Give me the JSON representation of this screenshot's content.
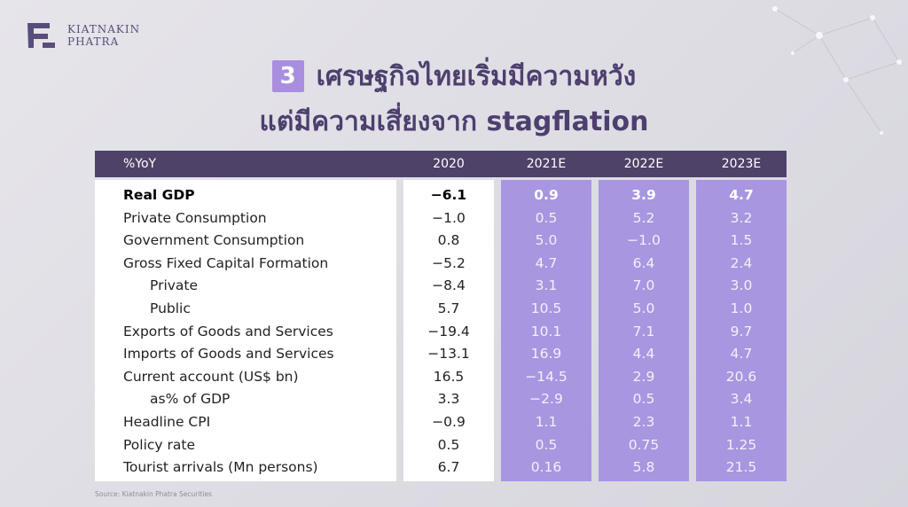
{
  "brand": {
    "line1": "KIATNAKIN",
    "line2": "PHATRA"
  },
  "title": {
    "number": "3",
    "line1": "เศรษฐกิจไทยเริ่มมีความหวัง",
    "line2": "แต่มีความเสี่ยงจาก stagflation"
  },
  "table": {
    "columns": [
      "%YoY",
      "2020",
      "2021E",
      "2022E",
      "2023E"
    ],
    "rows": [
      {
        "label": "Real GDP",
        "bold": true,
        "indent": false,
        "y2020": "-6.1",
        "y2021": "0.9",
        "y2022": "3.9",
        "y2023": "4.7"
      },
      {
        "label": "Private Consumption",
        "bold": false,
        "indent": false,
        "y2020": "-1.0",
        "y2021": "0.5",
        "y2022": "5.2",
        "y2023": "3.2"
      },
      {
        "label": "Government Consumption",
        "bold": false,
        "indent": false,
        "y2020": "0.8",
        "y2021": "5.0",
        "y2022": "-1.0",
        "y2023": "1.5"
      },
      {
        "label": "Gross Fixed Capital Formation",
        "bold": false,
        "indent": false,
        "y2020": "-5.2",
        "y2021": "4.7",
        "y2022": "6.4",
        "y2023": "2.4"
      },
      {
        "label": "Private",
        "bold": false,
        "indent": true,
        "y2020": "-8.4",
        "y2021": "3.1",
        "y2022": "7.0",
        "y2023": "3.0"
      },
      {
        "label": "Public",
        "bold": false,
        "indent": true,
        "y2020": "5.7",
        "y2021": "10.5",
        "y2022": "5.0",
        "y2023": "1.0"
      },
      {
        "label": "Exports of Goods and Services",
        "bold": false,
        "indent": false,
        "y2020": "-19.4",
        "y2021": "10.1",
        "y2022": "7.1",
        "y2023": "9.7"
      },
      {
        "label": "Imports of Goods and Services",
        "bold": false,
        "indent": false,
        "y2020": "-13.1",
        "y2021": "16.9",
        "y2022": "4.4",
        "y2023": "4.7"
      },
      {
        "label": "Current account (US$ bn)",
        "bold": false,
        "indent": false,
        "y2020": "16.5",
        "y2021": "-14.5",
        "y2022": "2.9",
        "y2023": "20.6"
      },
      {
        "label": "as% of GDP",
        "bold": false,
        "indent": true,
        "y2020": "3.3",
        "y2021": "-2.9",
        "y2022": "0.5",
        "y2023": "3.4"
      },
      {
        "label": "Headline CPI",
        "bold": false,
        "indent": false,
        "y2020": "-0.9",
        "y2021": "1.1",
        "y2022": "2.3",
        "y2023": "1.1"
      },
      {
        "label": "Policy rate",
        "bold": false,
        "indent": false,
        "y2020": "0.5",
        "y2021": "0.5",
        "y2022": "0.75",
        "y2023": "1.25"
      },
      {
        "label": "Tourist arrivals (Mn persons)",
        "bold": false,
        "indent": false,
        "y2020": "6.7",
        "y2021": "0.16",
        "y2022": "5.8",
        "y2023": "21.5"
      }
    ]
  },
  "source": "Source: Kiatnakin Phatra Securities",
  "colors": {
    "header": "#4e4268",
    "forecast_panel": "#a896e0",
    "title": "#4d3f6e",
    "accent": "#a98ee0"
  }
}
